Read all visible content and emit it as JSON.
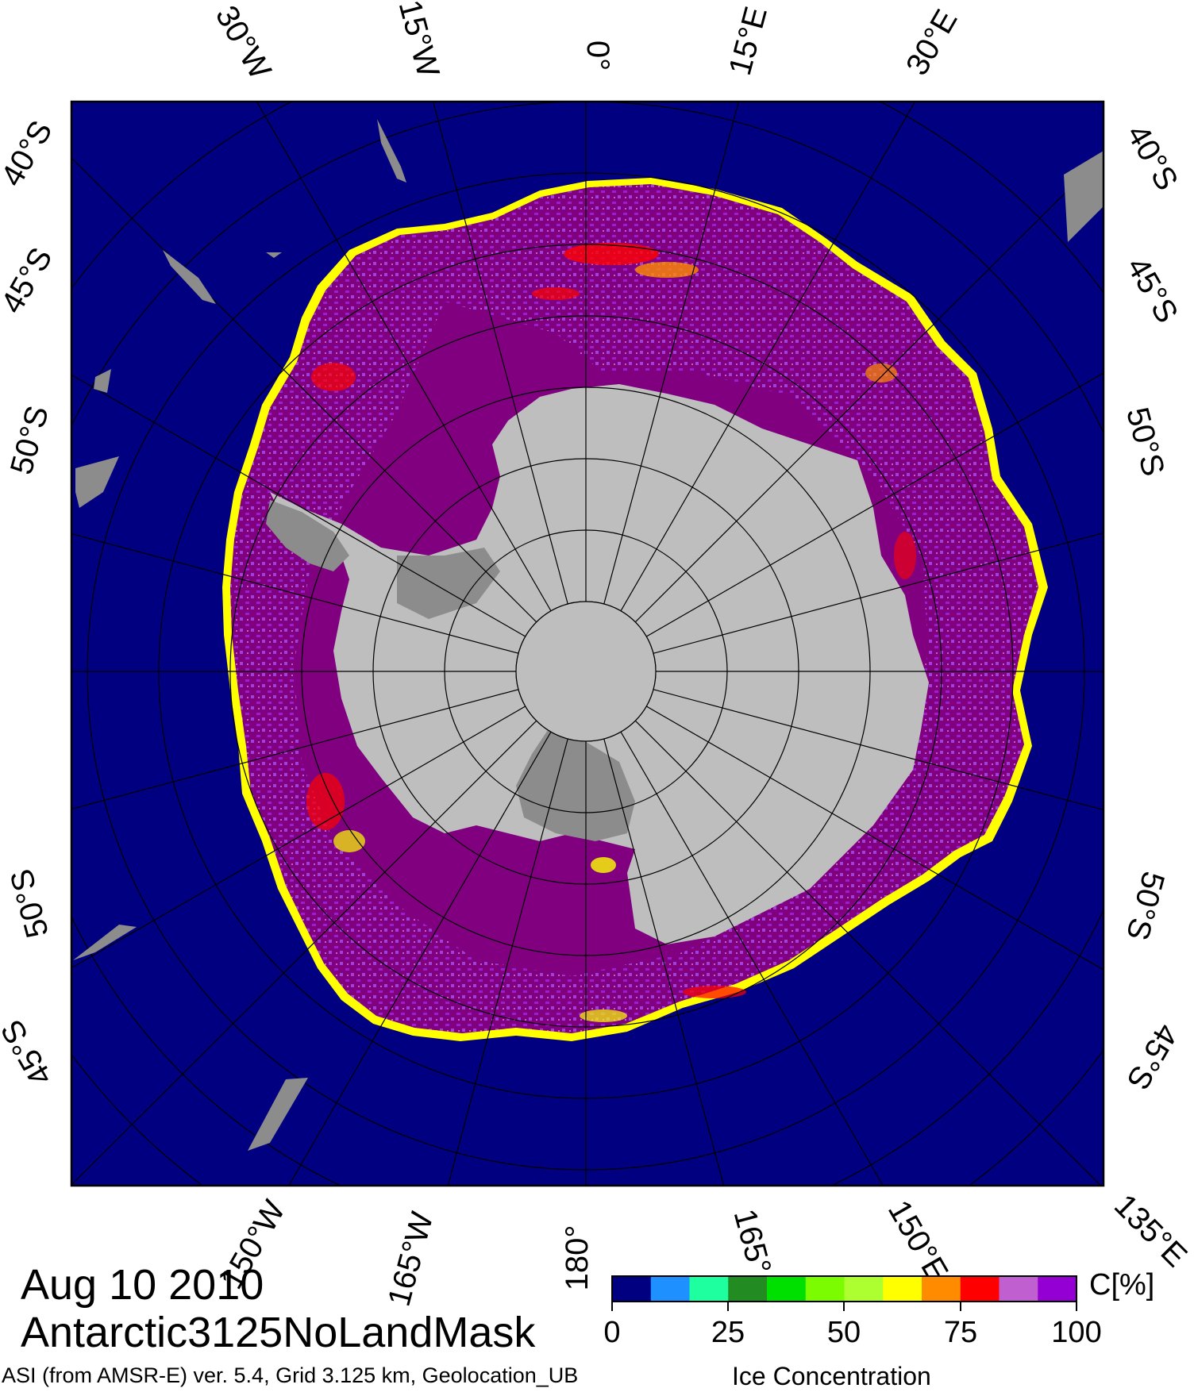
{
  "map": {
    "lat_labels": [
      "40°S",
      "45°S",
      "50°S",
      "50°S",
      "45°S",
      "40°S",
      "45°S",
      "50°S",
      "50°S",
      "45°S"
    ],
    "lon_labels_top": [
      "30°W",
      "15°W",
      "0°",
      "15°E",
      "30°E"
    ],
    "lon_labels_bottom": [
      "150°W",
      "165°W",
      "180°",
      "165°",
      "150°E",
      "135°E"
    ],
    "colors": {
      "ocean": "#000080",
      "land": "#bebebe",
      "ice_shelf": "#8c8c8c",
      "frame": "#000000"
    }
  },
  "caption": {
    "date": "Aug 10 2010",
    "title": "Antarctic3125NoLandMask",
    "source": "ASI (from AMSR-E) ver. 5.4,  Grid 3.125 km, Geolocation_UB"
  },
  "legend": {
    "title": "Ice Concentration",
    "unit": "C[%]",
    "ticks": [
      "0",
      "25",
      "50",
      "75",
      "100"
    ],
    "colors": [
      "#000080",
      "#1e90ff",
      "#1effa0",
      "#228b22",
      "#00e000",
      "#7cfc00",
      "#adff2f",
      "#ffff00",
      "#ff8c00",
      "#ff0000",
      "#c060d0",
      "#9400d3"
    ]
  }
}
